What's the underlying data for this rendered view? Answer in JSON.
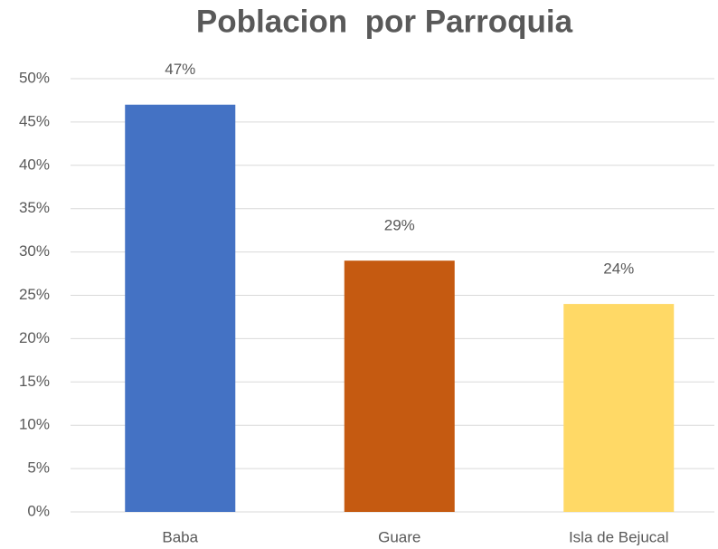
{
  "chart_data": {
    "type": "bar",
    "title": "Poblacion  por Parroquia",
    "categories": [
      "Baba",
      "Guare",
      "Isla de Bejucal"
    ],
    "values": [
      47,
      29,
      24
    ],
    "value_labels": [
      "47%",
      "29%",
      "24%"
    ],
    "colors": [
      "#4472c4",
      "#c55a11",
      "#ffd966"
    ],
    "ylim": [
      0,
      50
    ],
    "yticks": [
      {
        "value": 0,
        "label": "0%"
      },
      {
        "value": 5,
        "label": "5%"
      },
      {
        "value": 10,
        "label": "10%"
      },
      {
        "value": 15,
        "label": "15%"
      },
      {
        "value": 20,
        "label": "20%"
      },
      {
        "value": 25,
        "label": "25%"
      },
      {
        "value": 30,
        "label": "30%"
      },
      {
        "value": 35,
        "label": "35%"
      },
      {
        "value": 40,
        "label": "40%"
      },
      {
        "value": 45,
        "label": "45%"
      },
      {
        "value": 50,
        "label": "50%"
      }
    ],
    "grid": true
  }
}
